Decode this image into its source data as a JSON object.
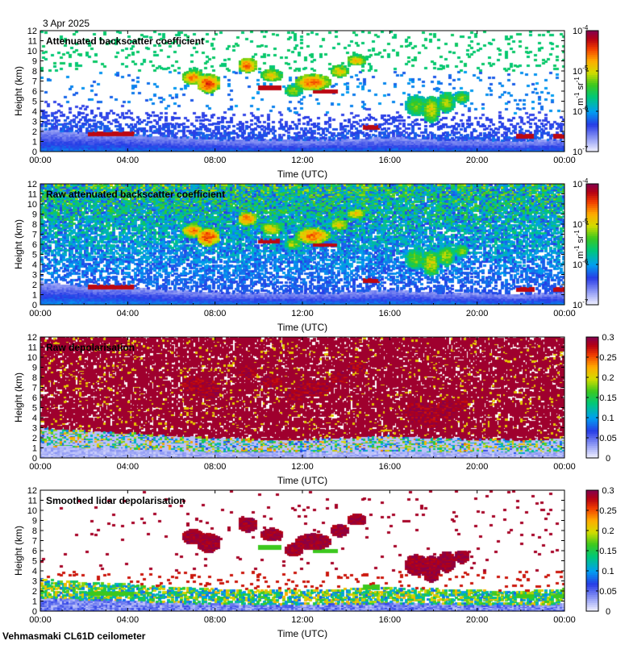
{
  "figure": {
    "date": "3 Apr 2025",
    "instrument": "Vehmasmaki CL61D ceilometer"
  },
  "chart_data": [
    {
      "type": "heatmap",
      "title": "Attenuated backscatter coefficient",
      "xlabel": "Time (UTC)",
      "ylabel": "Height (km)",
      "x_ticks": [
        "00:00",
        "04:00",
        "08:00",
        "12:00",
        "16:00",
        "20:00",
        "00:00"
      ],
      "y_ticks": [
        0,
        1,
        2,
        3,
        4,
        5,
        6,
        7,
        8,
        9,
        10,
        11,
        12
      ],
      "xlim_hours": [
        0,
        24
      ],
      "ylim": [
        0,
        12
      ],
      "colorbar": {
        "scale": "log",
        "min": 1e-07,
        "max": 0.0001,
        "ticks": [
          {
            "base": "10",
            "exp": "-4"
          },
          {
            "base": "10",
            "exp": "-5"
          },
          {
            "base": "10",
            "exp": "-6"
          },
          {
            "base": "10",
            "exp": "-7"
          }
        ],
        "label_base": "m",
        "label_exp1": "-1",
        "label_mid": " sr",
        "label_exp2": "-1"
      }
    },
    {
      "type": "heatmap",
      "title": "Raw attenuated backscatter coefficient",
      "xlabel": "Time (UTC)",
      "ylabel": "Height (km)",
      "x_ticks": [
        "00:00",
        "04:00",
        "08:00",
        "12:00",
        "16:00",
        "20:00",
        "00:00"
      ],
      "y_ticks": [
        0,
        1,
        2,
        3,
        4,
        5,
        6,
        7,
        8,
        9,
        10,
        11,
        12
      ],
      "xlim_hours": [
        0,
        24
      ],
      "ylim": [
        0,
        12
      ],
      "colorbar": {
        "scale": "log",
        "min": 1e-07,
        "max": 0.0001,
        "ticks": [
          {
            "base": "10",
            "exp": "-4"
          },
          {
            "base": "10",
            "exp": "-5"
          },
          {
            "base": "10",
            "exp": "-6"
          },
          {
            "base": "10",
            "exp": "-7"
          }
        ],
        "label_base": "m",
        "label_exp1": "-1",
        "label_mid": " sr",
        "label_exp2": "-1"
      }
    },
    {
      "type": "heatmap",
      "title": "Raw depolarisation",
      "xlabel": "Time (UTC)",
      "ylabel": "Height (km)",
      "x_ticks": [
        "00:00",
        "04:00",
        "08:00",
        "12:00",
        "16:00",
        "20:00",
        "00:00"
      ],
      "y_ticks": [
        0,
        1,
        2,
        3,
        4,
        5,
        6,
        7,
        8,
        9,
        10,
        11,
        12
      ],
      "xlim_hours": [
        0,
        24
      ],
      "ylim": [
        0,
        12
      ],
      "colorbar": {
        "scale": "linear",
        "min": 0,
        "max": 0.3,
        "ticks": [
          "0.3",
          "0.25",
          "0.2",
          "0.15",
          "0.1",
          "0.05",
          "0"
        ]
      }
    },
    {
      "type": "heatmap",
      "title": "Smoothed lidar depolarisation",
      "xlabel": "Time (UTC)",
      "ylabel": "Height (km)",
      "x_ticks": [
        "00:00",
        "04:00",
        "08:00",
        "12:00",
        "16:00",
        "20:00",
        "00:00"
      ],
      "y_ticks": [
        0,
        1,
        2,
        3,
        4,
        5,
        6,
        7,
        8,
        9,
        10,
        11,
        12
      ],
      "xlim_hours": [
        0,
        24
      ],
      "ylim": [
        0,
        12
      ],
      "colorbar": {
        "scale": "linear",
        "min": 0,
        "max": 0.3,
        "ticks": [
          "0.3",
          "0.25",
          "0.2",
          "0.15",
          "0.1",
          "0.05",
          "0"
        ]
      }
    }
  ],
  "features": {
    "boundary_layer_top_km": [
      [
        0,
        2.2
      ],
      [
        2,
        1.9
      ],
      [
        4,
        1.7
      ],
      [
        6,
        1.4
      ],
      [
        8,
        1.2
      ],
      [
        10,
        1.1
      ],
      [
        12,
        1.1
      ],
      [
        14,
        1.2
      ],
      [
        16,
        1.4
      ],
      [
        18,
        1.2
      ],
      [
        20,
        1.1
      ],
      [
        22,
        1.0
      ],
      [
        24,
        1.2
      ]
    ],
    "thin_layers": [
      {
        "t0": 2.2,
        "t1": 4.3,
        "h": 1.8
      },
      {
        "t0": 10.0,
        "t1": 11.0,
        "h": 6.3
      },
      {
        "t0": 12.5,
        "t1": 13.6,
        "h": 6.0
      },
      {
        "t0": 14.8,
        "t1": 15.5,
        "h": 2.4
      },
      {
        "t0": 21.8,
        "t1": 22.6,
        "h": 1.6
      },
      {
        "t0": 23.5,
        "t1": 24.0,
        "h": 1.6
      }
    ],
    "cloud_blobs": [
      {
        "t": 7.0,
        "h": 7.4,
        "dt": 0.5,
        "dh": 0.7,
        "v": 0.78
      },
      {
        "t": 7.7,
        "h": 6.8,
        "dt": 0.55,
        "dh": 0.9,
        "v": 0.85
      },
      {
        "t": 9.5,
        "h": 8.6,
        "dt": 0.45,
        "dh": 0.7,
        "v": 0.8
      },
      {
        "t": 10.6,
        "h": 7.6,
        "dt": 0.5,
        "dh": 0.6,
        "v": 0.7
      },
      {
        "t": 11.6,
        "h": 6.1,
        "dt": 0.4,
        "dh": 0.6,
        "v": 0.62
      },
      {
        "t": 12.5,
        "h": 6.9,
        "dt": 0.8,
        "dh": 0.8,
        "v": 0.8
      },
      {
        "t": 13.7,
        "h": 8.0,
        "dt": 0.4,
        "dh": 0.6,
        "v": 0.7
      },
      {
        "t": 14.5,
        "h": 9.1,
        "dt": 0.45,
        "dh": 0.5,
        "v": 0.72
      },
      {
        "t": 17.2,
        "h": 4.6,
        "dt": 0.5,
        "dh": 1.0,
        "v": 0.58
      },
      {
        "t": 17.9,
        "h": 4.2,
        "dt": 0.4,
        "dh": 1.3,
        "v": 0.66
      },
      {
        "t": 18.6,
        "h": 4.9,
        "dt": 0.4,
        "dh": 1.0,
        "v": 0.62
      },
      {
        "t": 19.3,
        "h": 5.4,
        "dt": 0.35,
        "dh": 0.6,
        "v": 0.6
      }
    ]
  }
}
